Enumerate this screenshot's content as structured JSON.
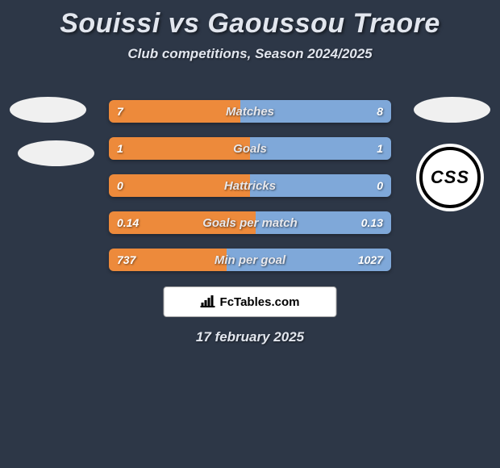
{
  "title": "Souissi vs Gaoussou Traore",
  "subtitle": "Club competitions, Season 2024/2025",
  "colors": {
    "background": "#2d3747",
    "left_bar": "#ed8a3b",
    "right_bar": "#7fa8d9",
    "badge_white": "#f0f0f0"
  },
  "club_logo_text": "CSS",
  "footer_brand": "FcTables.com",
  "date": "17 february 2025",
  "metrics": [
    {
      "label": "Matches",
      "left_value": "7",
      "right_value": "8",
      "left_pct": 46.7,
      "right_pct": 53.3
    },
    {
      "label": "Goals",
      "left_value": "1",
      "right_value": "1",
      "left_pct": 50,
      "right_pct": 50
    },
    {
      "label": "Hattricks",
      "left_value": "0",
      "right_value": "0",
      "left_pct": 50,
      "right_pct": 50
    },
    {
      "label": "Goals per match",
      "left_value": "0.14",
      "right_value": "0.13",
      "left_pct": 51.9,
      "right_pct": 48.1
    },
    {
      "label": "Min per goal",
      "left_value": "737",
      "right_value": "1027",
      "left_pct": 41.8,
      "right_pct": 58.2
    }
  ]
}
